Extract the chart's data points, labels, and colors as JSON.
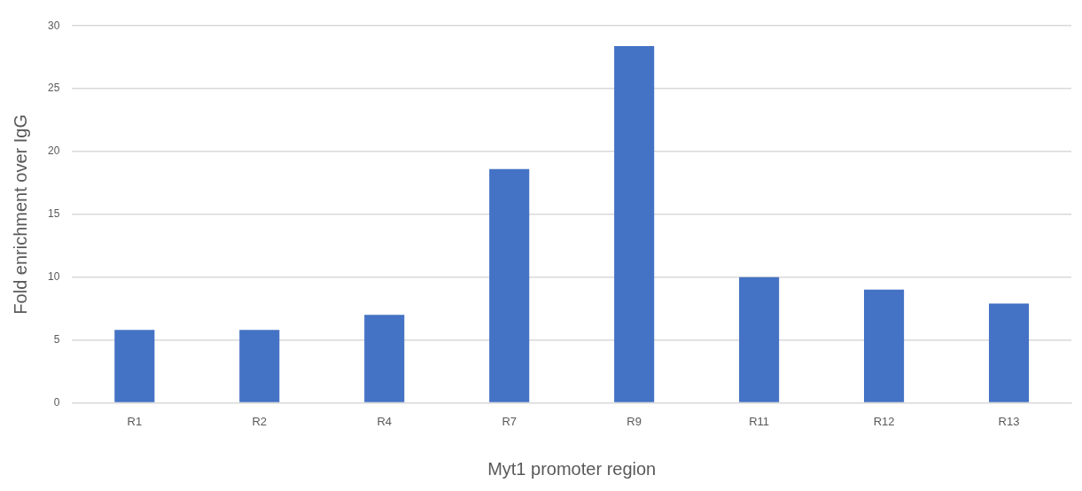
{
  "chart_data": {
    "type": "bar",
    "xlabel": "Myt1 promoter region",
    "ylabel": "Fold enrichment over IgG",
    "categories": [
      "R1",
      "R2",
      "R4",
      "R7",
      "R9",
      "R11",
      "R12",
      "R13"
    ],
    "values": [
      5.8,
      5.8,
      7.0,
      18.6,
      28.4,
      10.0,
      9.0,
      7.9
    ],
    "color": "#4472c4",
    "ylim": [
      0,
      30
    ],
    "yticks": [
      0,
      5,
      10,
      15,
      20,
      25,
      30
    ],
    "grid": "y"
  }
}
